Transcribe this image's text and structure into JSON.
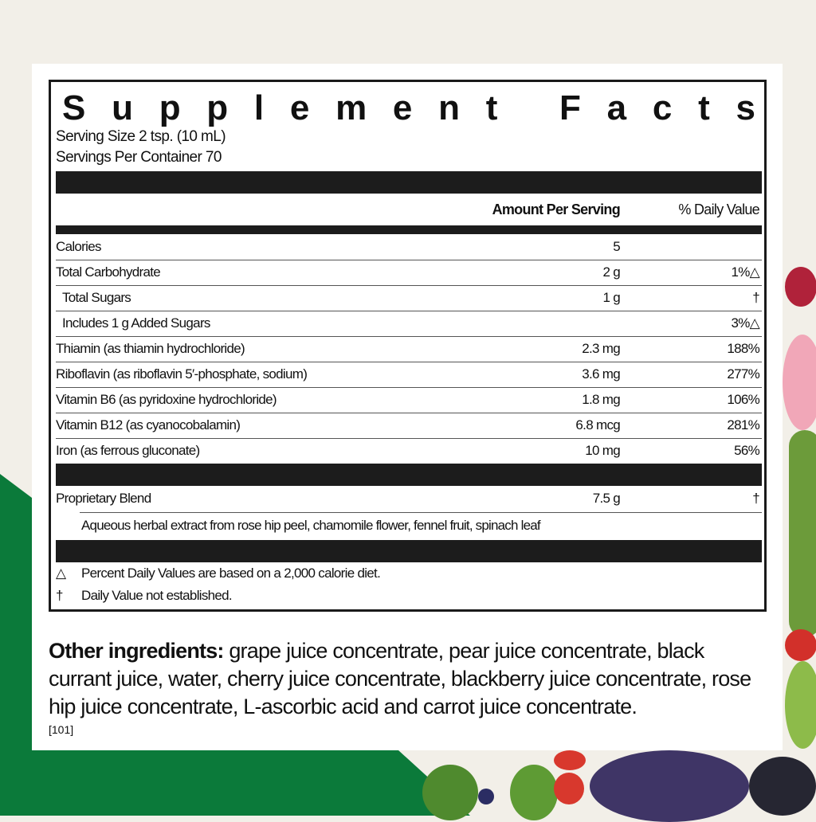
{
  "title": "Supplement Facts",
  "serving_size": "Serving Size 2 tsp. (10 mL)",
  "servings_per_container": "Servings Per Container 70",
  "headers": {
    "amount": "Amount Per Serving",
    "dv": "% Daily Value"
  },
  "rows": [
    {
      "name": "Calories",
      "amount": "5",
      "dv": ""
    },
    {
      "name": "Total Carbohydrate",
      "amount": "2 g",
      "dv": "1%△"
    },
    {
      "name": "Total Sugars",
      "amount": "1 g",
      "dv": "†"
    },
    {
      "name": "Includes 1 g Added Sugars",
      "amount": "",
      "dv": "3%△"
    },
    {
      "name": "Thiamin (as thiamin hydrochloride)",
      "amount": "2.3 mg",
      "dv": "188%"
    },
    {
      "name": "Riboflavin (as riboflavin 5′-phosphate, sodium)",
      "amount": "3.6 mg",
      "dv": "277%"
    },
    {
      "name": "Vitamin B6 (as pyridoxine hydrochloride)",
      "amount": "1.8 mg",
      "dv": "106%"
    },
    {
      "name": "Vitamin B12 (as cyanocobalamin)",
      "amount": "6.8 mcg",
      "dv": "281%"
    },
    {
      "name": "Iron (as ferrous gluconate)",
      "amount": "10 mg",
      "dv": "56%"
    }
  ],
  "blend": {
    "name": "Proprietary Blend",
    "amount": "7.5 g",
    "dv": "†",
    "description": "Aqueous herbal extract from rose hip peel, chamomile flower, fennel fruit, spinach leaf"
  },
  "footnotes": [
    {
      "symbol": "△",
      "text": "Percent Daily Values are based on a 2,000 calorie diet."
    },
    {
      "symbol": "†",
      "text": "Daily Value not established."
    }
  ],
  "other_ingredients": {
    "label": "Other ingredients:",
    "text": " grape juice concentrate, pear juice concentrate, black currant juice, water, cherry juice concentrate, blackberry juice concentrate, rose hip juice concentrate, L-ascorbic acid and carrot juice concentrate."
  },
  "code": "[101]",
  "colors": {
    "brand_green": "#0b7a3a",
    "background": "#f2efe8"
  }
}
